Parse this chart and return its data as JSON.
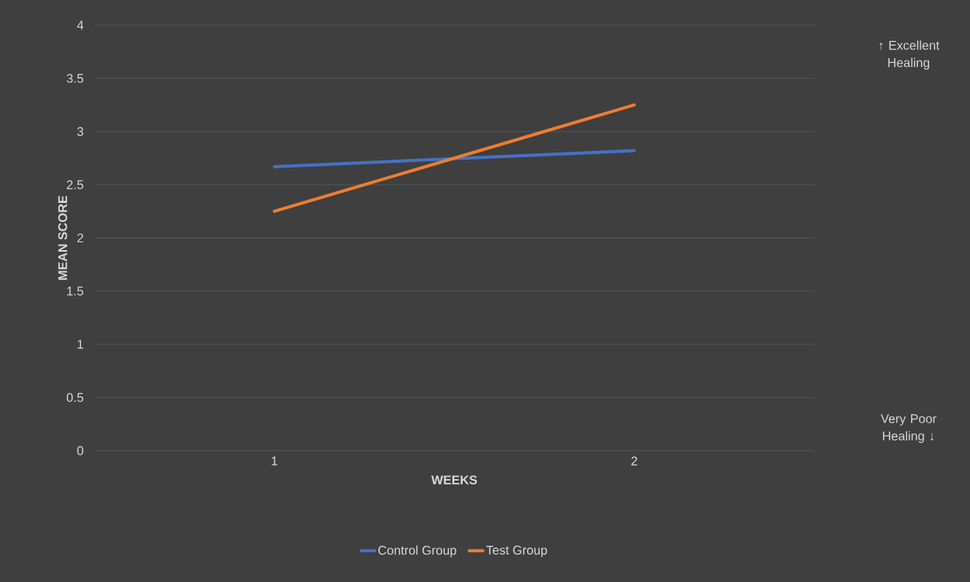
{
  "chart_data": {
    "type": "line",
    "xlabel": "WEEKS",
    "ylabel": "MEAN SCORE",
    "categories": [
      "1",
      "2"
    ],
    "series": [
      {
        "name": "Control Group",
        "color": "#4472c4",
        "values": [
          2.67,
          2.82
        ]
      },
      {
        "name": "Test Group",
        "color": "#ed7d31",
        "values": [
          2.25,
          3.25
        ]
      }
    ],
    "ylim": [
      0,
      4
    ],
    "yticks": [
      0,
      0.5,
      1,
      1.5,
      2,
      2.5,
      3,
      3.5,
      4
    ],
    "grid": "y",
    "legend": "bottom",
    "marker": "none",
    "line_style": "solid",
    "annotations": [
      "↑ Excellent Healing",
      "Very Poor Healing ↓"
    ]
  }
}
